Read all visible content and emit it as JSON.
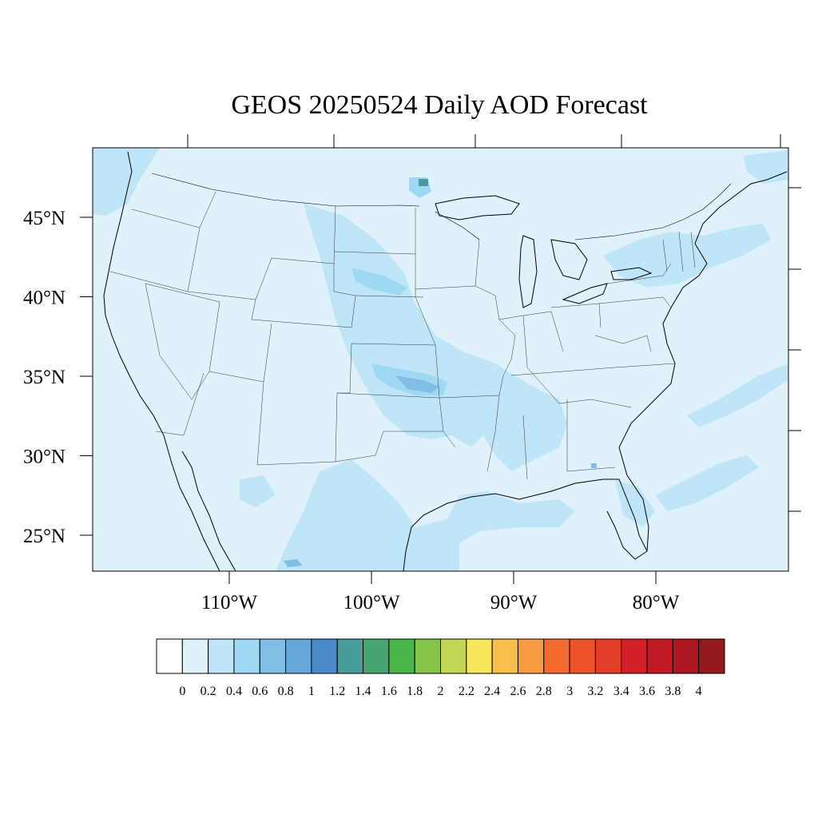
{
  "title": "GEOS 20250524 Daily AOD Forecast",
  "map": {
    "lon_range": [
      -118.2,
      -69.2
    ],
    "lat_range": [
      22.7,
      49.4
    ],
    "lat_labels": [
      {
        "value": 45,
        "text": "45°N"
      },
      {
        "value": 40,
        "text": "40°N"
      },
      {
        "value": 35,
        "text": "35°N"
      },
      {
        "value": 30,
        "text": "30°N"
      },
      {
        "value": 25,
        "text": "25°N"
      }
    ],
    "lon_labels": [
      {
        "value": -110,
        "text": "110°W"
      },
      {
        "value": -100,
        "text": "100°W"
      },
      {
        "value": -90,
        "text": "90°W"
      },
      {
        "value": -80,
        "text": "80°W"
      }
    ],
    "background_color": "#dff1fb"
  },
  "colorbar": {
    "colors": [
      "#ffffff",
      "#dff1fb",
      "#bfe6f8",
      "#9fd8f3",
      "#82bde6",
      "#65a7db",
      "#4a8ac9",
      "#479c9c",
      "#46a572",
      "#4ab649",
      "#87c44a",
      "#c3d655",
      "#f8e65c",
      "#f8c04b",
      "#f89a3f",
      "#f46b30",
      "#ec5328",
      "#e13d27",
      "#d21f28",
      "#c21a24",
      "#ac1820",
      "#931a1d"
    ],
    "labels": [
      "0",
      "0.2",
      "0.4",
      "0.6",
      "0.8",
      "1",
      "1.2",
      "1.4",
      "1.6",
      "1.8",
      "2",
      "2.2",
      "2.4",
      "2.6",
      "2.8",
      "3",
      "3.2",
      "3.4",
      "3.6",
      "3.8",
      "4"
    ]
  }
}
